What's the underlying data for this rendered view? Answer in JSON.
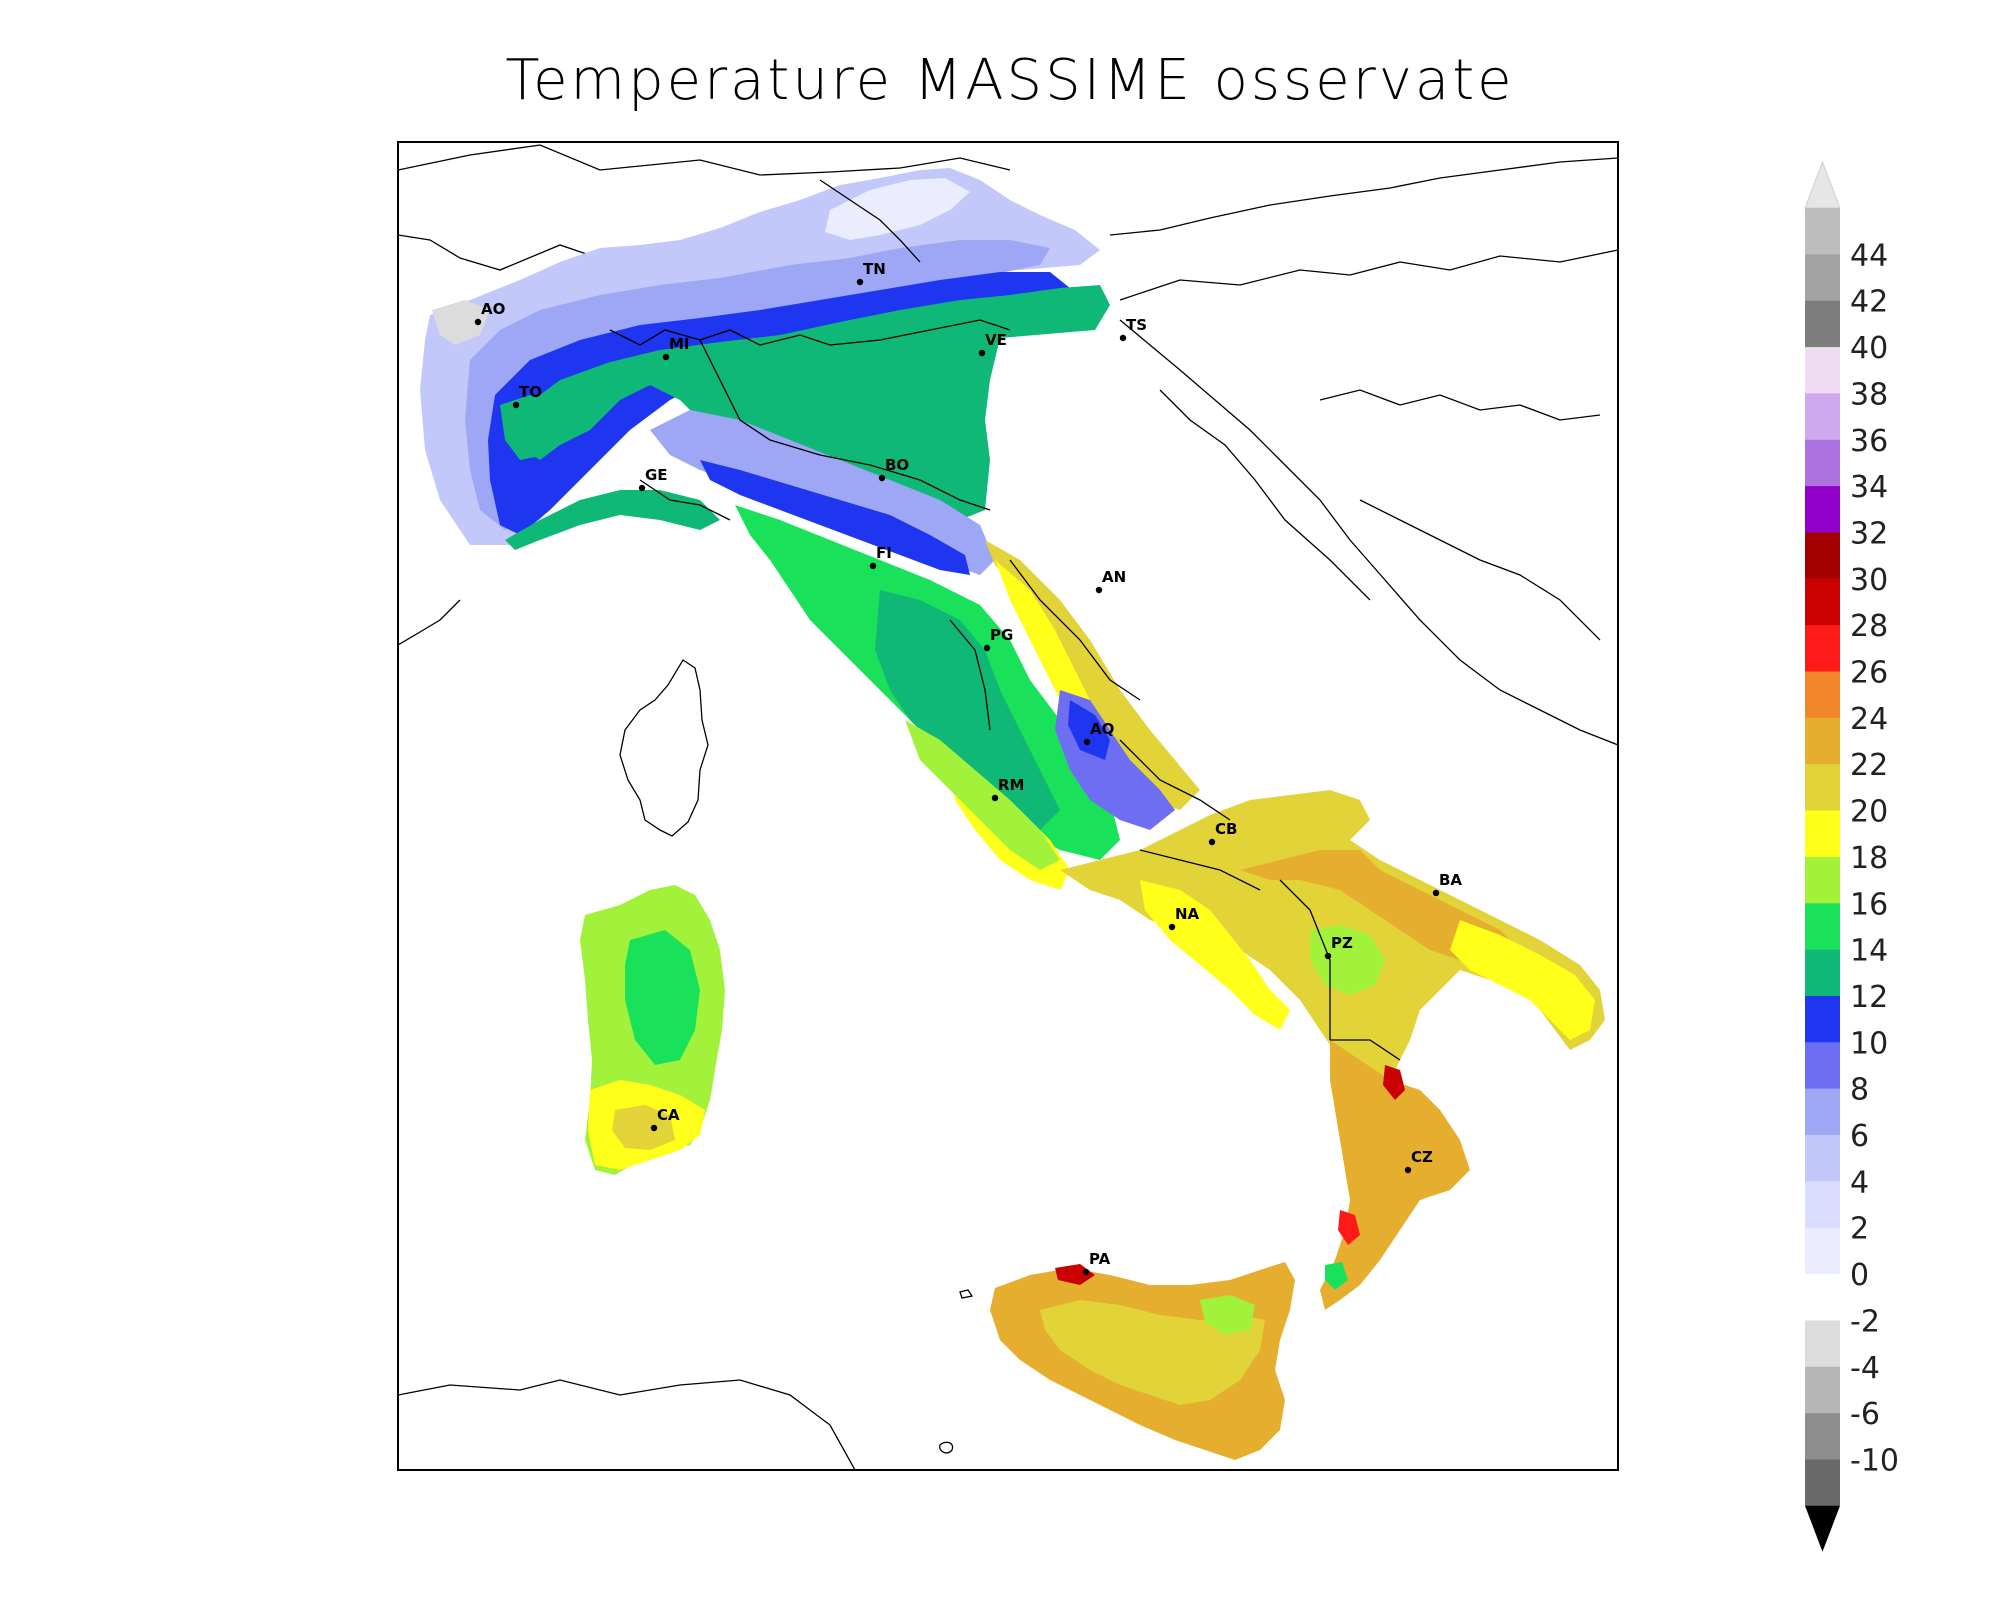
{
  "title": "Temperature MASSIME osservate",
  "cities": [
    {
      "code": "AO"
    },
    {
      "code": "TN"
    },
    {
      "code": "TS"
    },
    {
      "code": "MI"
    },
    {
      "code": "VE"
    },
    {
      "code": "TO"
    },
    {
      "code": "GE"
    },
    {
      "code": "BO"
    },
    {
      "code": "FI"
    },
    {
      "code": "AN"
    },
    {
      "code": "PG"
    },
    {
      "code": "AQ"
    },
    {
      "code": "RM"
    },
    {
      "code": "CB"
    },
    {
      "code": "BA"
    },
    {
      "code": "NA"
    },
    {
      "code": "PZ"
    },
    {
      "code": "CA"
    },
    {
      "code": "CZ"
    },
    {
      "code": "PA"
    }
  ],
  "legend": {
    "labels": [
      "44",
      "42",
      "40",
      "38",
      "36",
      "34",
      "32",
      "30",
      "28",
      "26",
      "24",
      "22",
      "20",
      "18",
      "16",
      "14",
      "12",
      "10",
      "8",
      "6",
      "4",
      "2",
      "0",
      "-2",
      "-4",
      "-6",
      "-10"
    ],
    "colors": [
      "#bdbdbd",
      "#a3a3a3",
      "#7d7d7d",
      "#f0dcf2",
      "#d0a8ee",
      "#ab72e0",
      "#9100c8",
      "#a50000",
      "#cb0000",
      "#ff1a1a",
      "#f2862a",
      "#e5ae2e",
      "#e2d438",
      "#ffff19",
      "#a2f23c",
      "#19e25a",
      "#10b877",
      "#1e36ef",
      "#6e6ef2",
      "#9ea6f6",
      "#c2c8fa",
      "#dbddfc",
      "#ebedfe",
      "#ffffff",
      "#dcdcdc",
      "#b6b6b6",
      "#8e8e8e",
      "#6a6a6a"
    ],
    "top_arrow_color": "#e6e6e6",
    "bottom_arrow_color": "#000000"
  }
}
